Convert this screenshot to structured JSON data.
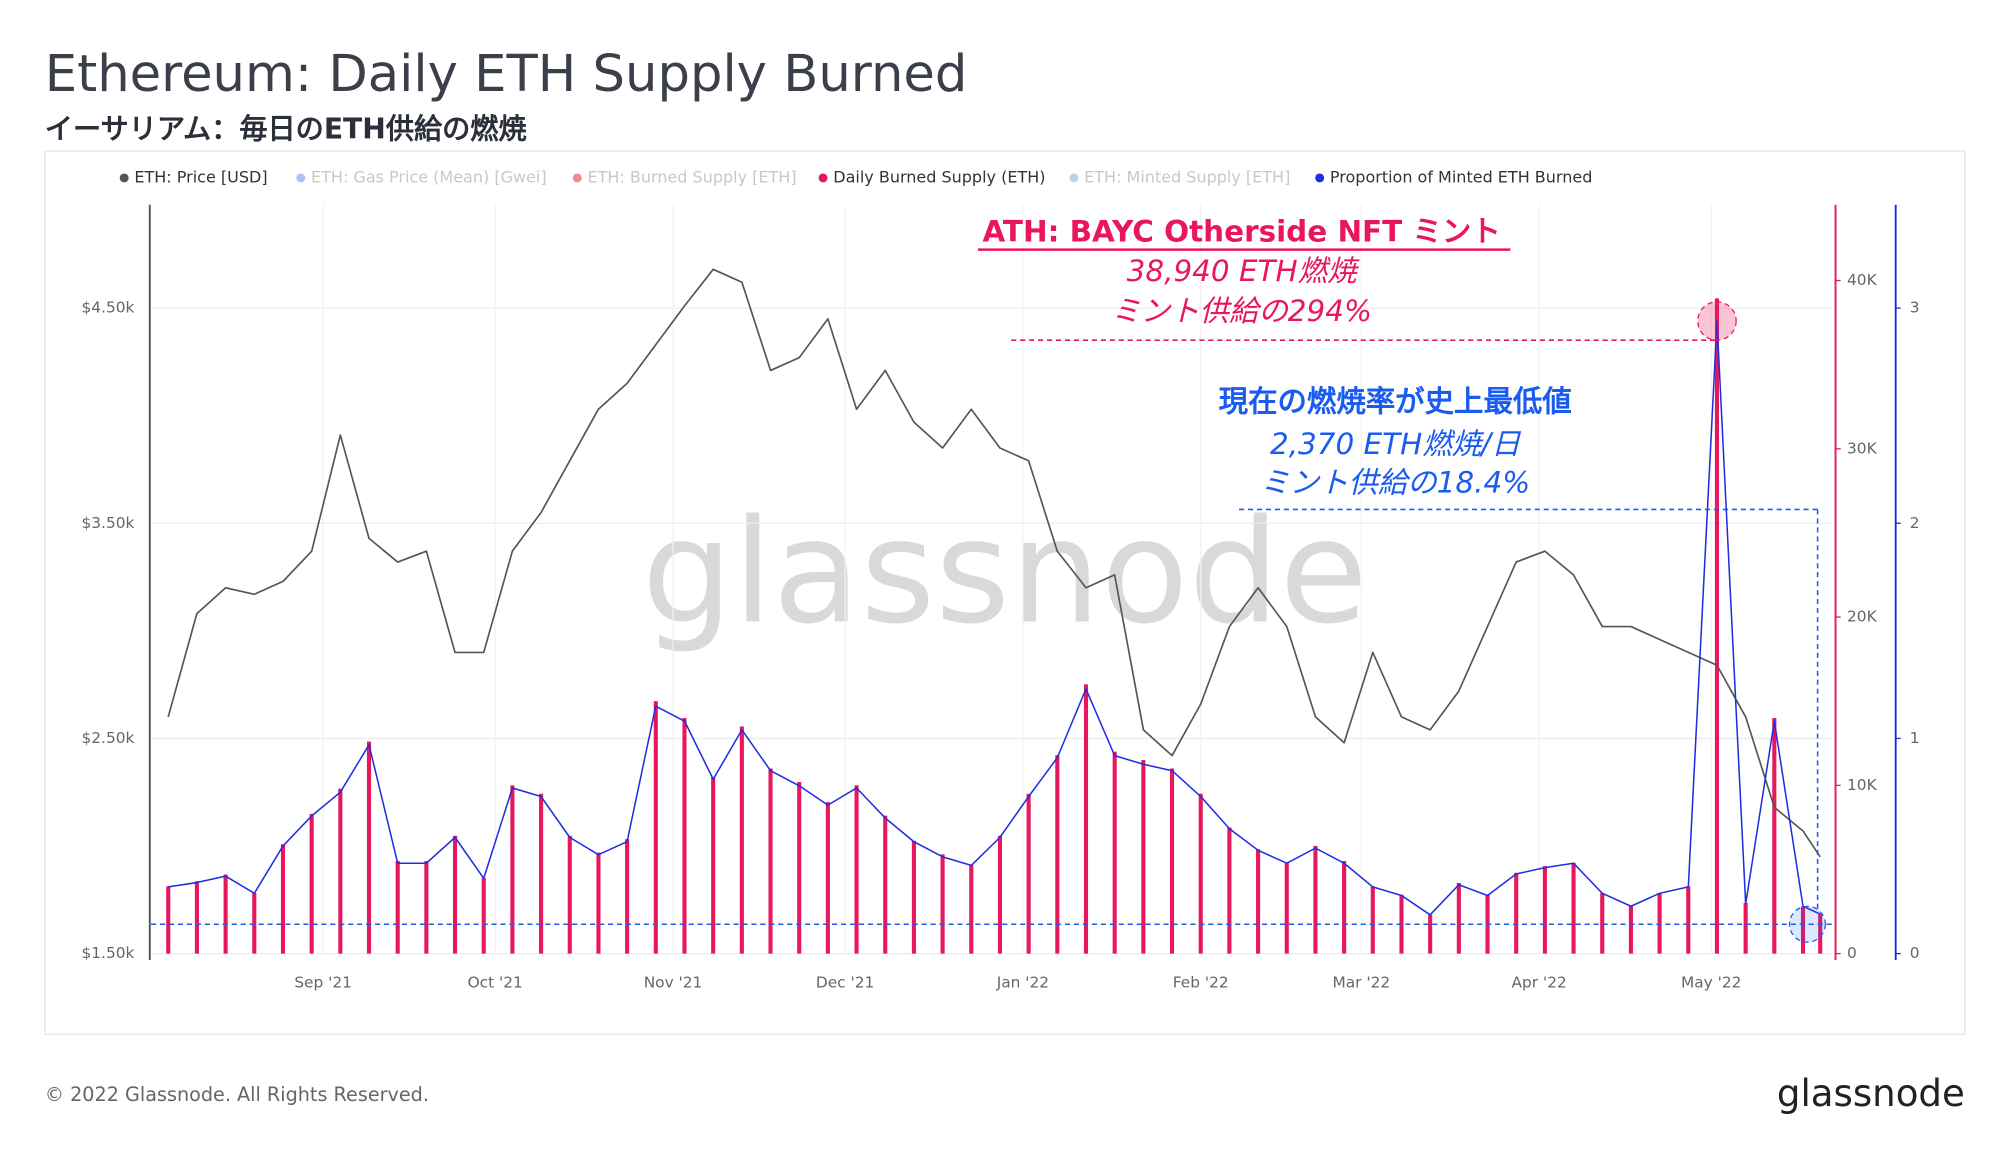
{
  "chart_data": {
    "type": "line",
    "title": "Ethereum: Daily ETH Supply Burned",
    "subtitle": "イーサリアム：毎日のETH供給の燃焼",
    "watermark": "glassnode",
    "grid": true,
    "x": [
      0,
      5,
      10,
      15,
      20,
      25,
      30,
      35,
      40,
      45,
      50,
      55,
      60,
      65,
      70,
      75,
      80,
      85,
      90,
      95,
      100,
      105,
      110,
      115,
      120,
      125,
      130,
      135,
      140,
      145,
      150,
      155,
      160,
      165,
      170,
      175,
      180,
      185,
      190,
      195,
      200,
      205,
      210,
      215,
      220,
      225,
      230,
      235,
      240,
      245,
      250,
      255,
      260,
      265,
      270,
      275,
      280,
      285,
      288
    ],
    "xlim": [
      -3,
      290
    ],
    "xticks": [
      {
        "value": 27,
        "label": "Sep '21"
      },
      {
        "value": 57,
        "label": "Oct '21"
      },
      {
        "value": 88,
        "label": "Nov '21"
      },
      {
        "value": 118,
        "label": "Dec '21"
      },
      {
        "value": 149,
        "label": "Jan '22"
      },
      {
        "value": 180,
        "label": "Feb '22"
      },
      {
        "value": 208,
        "label": "Mar '22"
      },
      {
        "value": 239,
        "label": "Apr '22"
      },
      {
        "value": 269,
        "label": "May '22"
      }
    ],
    "ylim": [
      1500,
      4980
    ],
    "yticks": [
      {
        "value": 1500,
        "label": "$1.50k"
      },
      {
        "value": 2500,
        "label": "$2.50k"
      },
      {
        "value": 3500,
        "label": "$3.50k"
      },
      {
        "value": 4500,
        "label": "$4.50k"
      }
    ],
    "y2lim": [
      0,
      44500
    ],
    "y2ticks": [
      0,
      {
        "value": 10000,
        "label": "10K"
      },
      {
        "value": 20000,
        "label": "20K"
      },
      {
        "value": 30000,
        "label": "30K"
      },
      {
        "value": 40000,
        "label": "40K"
      }
    ],
    "y3lim": [
      0,
      3.48
    ],
    "y3ticks": [
      0,
      1,
      2,
      3
    ],
    "series": [
      {
        "name": "ETH: Price [USD]",
        "color": "#555555",
        "visible": true,
        "type": "line",
        "values": [
          2600,
          3080,
          3200,
          3170,
          3230,
          3370,
          3910,
          3430,
          3320,
          3370,
          2900,
          2900,
          3370,
          3550,
          3790,
          4030,
          4150,
          4330,
          4510,
          4680,
          4620,
          4210,
          4270,
          4450,
          4030,
          4210,
          3970,
          3850,
          4030,
          3850,
          3790,
          3370,
          3200,
          3260,
          2540,
          2420,
          2660,
          3020,
          3200,
          3020,
          2600,
          2480,
          2900,
          2600,
          2540,
          2720,
          3020,
          3320,
          3370,
          3260,
          3020,
          3020,
          2960,
          2900,
          2840,
          2600,
          2180,
          2070,
          1950
        ]
      },
      {
        "name": "ETH: Gas Price (Mean) [Gwei]",
        "color": "#3b7be6",
        "visible": false
      },
      {
        "name": "ETH: Burned Supply [ETH]",
        "color": "#d0021b",
        "visible": false
      },
      {
        "name": "Daily Burned Supply (ETH)",
        "color": "#e8175d",
        "visible": true,
        "type": "bar",
        "axis": "y2",
        "values": [
          4000,
          4300,
          4700,
          3600,
          6500,
          8300,
          9800,
          12600,
          5500,
          5500,
          7000,
          4500,
          10000,
          9500,
          7000,
          6000,
          6800,
          15000,
          14000,
          10500,
          13500,
          11000,
          10200,
          9000,
          10000,
          8200,
          6700,
          5900,
          5300,
          7000,
          9500,
          11800,
          16000,
          12000,
          11500,
          11000,
          9500,
          7500,
          6200,
          5400,
          6400,
          5500,
          4000,
          3500,
          2300,
          4200,
          3500,
          4800,
          5200,
          5400,
          3600,
          2800,
          3600,
          4000,
          38940,
          3000,
          14000,
          2800,
          2370
        ]
      },
      {
        "name": "ETH: Minted Supply [ETH]",
        "color": "#4da3f0",
        "visible": false
      },
      {
        "name": "Proportion of Minted ETH Burned",
        "color": "#1f2fe0",
        "visible": true,
        "type": "line",
        "axis": "y3",
        "values": [
          0.31,
          0.33,
          0.36,
          0.28,
          0.5,
          0.64,
          0.75,
          0.97,
          0.42,
          0.42,
          0.54,
          0.35,
          0.77,
          0.73,
          0.54,
          0.46,
          0.52,
          1.15,
          1.08,
          0.81,
          1.04,
          0.85,
          0.78,
          0.69,
          0.77,
          0.63,
          0.52,
          0.45,
          0.41,
          0.54,
          0.73,
          0.91,
          1.23,
          0.92,
          0.88,
          0.85,
          0.73,
          0.58,
          0.48,
          0.42,
          0.49,
          0.42,
          0.31,
          0.27,
          0.18,
          0.32,
          0.27,
          0.37,
          0.4,
          0.42,
          0.28,
          0.22,
          0.28,
          0.31,
          2.94,
          0.23,
          1.08,
          0.22,
          0.184
        ]
      }
    ],
    "annotations": [
      {
        "color": "#e8175d",
        "lines": [
          "ATH: BAYC Otherside NFT ミント",
          "38,940 ETH燃焼",
          "ミント供給の294%"
        ]
      },
      {
        "color": "#1a5cf0",
        "lines": [
          "現在の燃焼率が史上最低値",
          "2,370 ETH燃焼/日",
          "ミント供給の18.4%"
        ]
      }
    ]
  },
  "footer": {
    "copyright": "© 2022 Glassnode. All Rights Reserved.",
    "logo": "glassnode"
  }
}
